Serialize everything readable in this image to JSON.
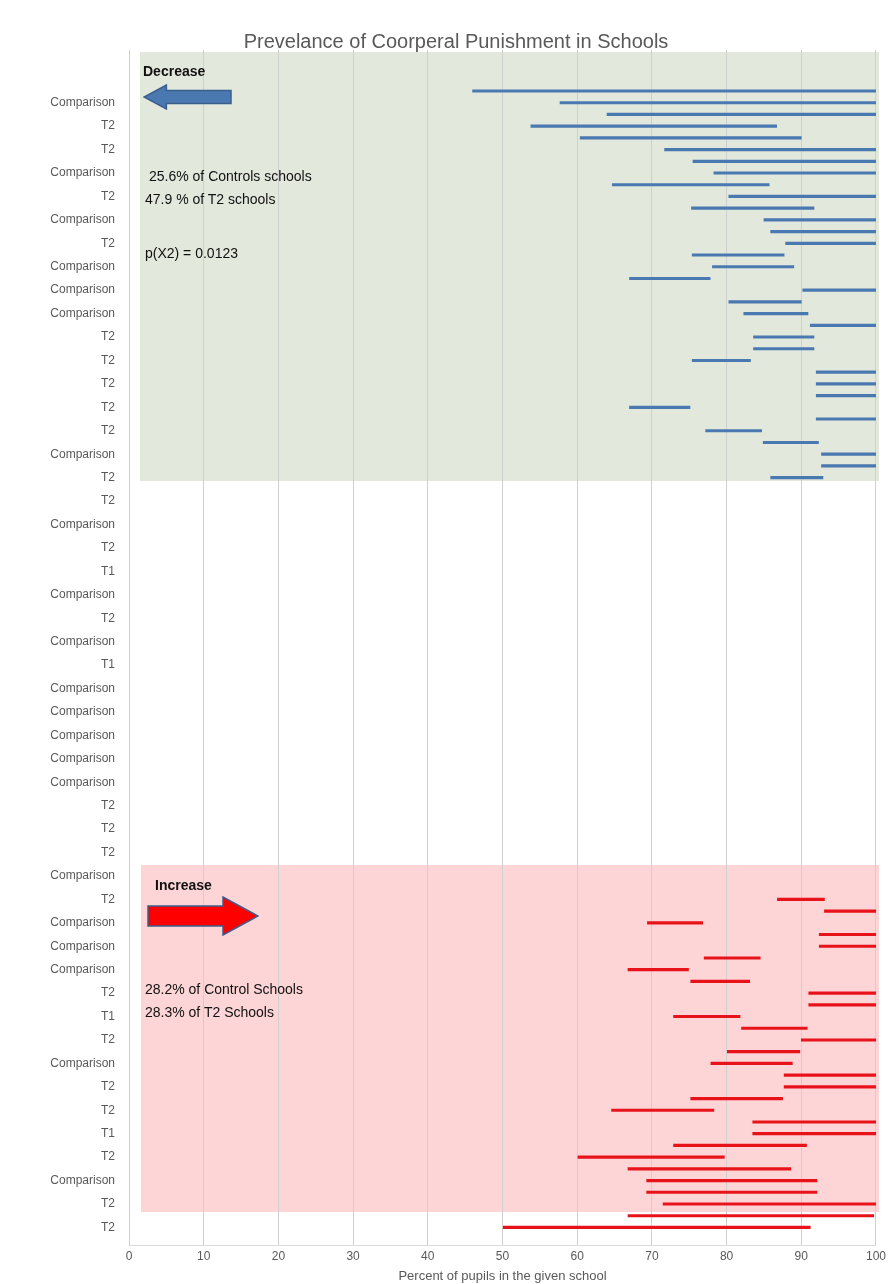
{
  "chart_data": {
    "type": "bar",
    "orientation": "horizontal",
    "title": "Prevelance of Coorperal Punishment in Schools",
    "xlabel": "Percent of pupils in the given school",
    "categories": [
      null,
      null,
      null,
      null,
      "Comparison",
      null,
      "T2",
      null,
      "T2",
      null,
      "Comparison",
      null,
      "T2",
      null,
      "Comparison",
      null,
      "T2",
      null,
      "Comparison",
      null,
      "Comparison",
      null,
      "Comparison",
      null,
      "T2",
      null,
      "T2",
      null,
      "T2",
      null,
      "T2",
      null,
      "T2",
      null,
      "Comparison",
      null,
      "T2",
      null,
      "T2",
      null,
      "Comparison",
      null,
      "T2",
      null,
      "T1",
      null,
      "Comparison",
      null,
      "T2",
      null,
      "Comparison",
      null,
      "T1",
      null,
      "Comparison",
      null,
      "Comparison",
      null,
      "Comparison",
      null,
      "Comparison",
      null,
      "Comparison",
      null,
      "T2",
      null,
      "T2",
      null,
      "T2",
      null,
      "Comparison",
      null,
      "T2",
      null,
      "Comparison",
      null,
      "Comparison",
      null,
      "Comparison",
      null,
      "T2",
      null,
      "T1",
      null,
      "T2",
      null,
      "Comparison",
      null,
      "T2",
      null,
      "T2",
      null,
      "T1",
      null,
      "T2",
      null,
      "Comparison",
      null,
      "T2",
      null,
      "T2",
      null
    ],
    "series": [
      {
        "color": "#4a78b0",
        "base": [
          null,
          null,
          null,
          100,
          100,
          100,
          86.7,
          90,
          100,
          100,
          100,
          85.7,
          100,
          91.7,
          100,
          100,
          100,
          87.7,
          89,
          77.8,
          100,
          90,
          90.9,
          100,
          91.7,
          91.7,
          83.2,
          100,
          100,
          100,
          75.1,
          100,
          84.7,
          92.3,
          100,
          100,
          92.9,
          null,
          null,
          null,
          null,
          null,
          null,
          null,
          null,
          null,
          null,
          null,
          null,
          null,
          null,
          null,
          null,
          null,
          null,
          null,
          null,
          null,
          null,
          null,
          null,
          null,
          null,
          null,
          null,
          null,
          null,
          null,
          null,
          null,
          null,
          null,
          null,
          null,
          null,
          null,
          null,
          null,
          null,
          null,
          null,
          null,
          null,
          null,
          null,
          null,
          null,
          null,
          null,
          null,
          null,
          null,
          null,
          null,
          null,
          null,
          null,
          null,
          null,
          null,
          null,
          null
        ],
        "values": [
          null,
          null,
          null,
          -54,
          -42.3,
          -36,
          -32.9,
          -29.6,
          -28.3,
          -24.5,
          -21.7,
          -21,
          -19.7,
          -16.4,
          -15,
          -14.1,
          -12.1,
          -12.3,
          -10.9,
          -10.8,
          -9.8,
          -9.7,
          -8.6,
          -8.8,
          -8.1,
          -8.1,
          -7.8,
          -8,
          -8,
          -8,
          -8.1,
          -8,
          -7.5,
          -7.4,
          -7.3,
          -7.3,
          -7,
          null,
          null,
          null,
          null,
          null,
          null,
          null,
          null,
          null,
          null,
          null,
          null,
          null,
          null,
          null,
          null,
          null,
          null,
          null,
          null,
          null,
          null,
          null,
          null,
          null,
          null,
          null,
          null,
          null,
          null,
          null,
          null,
          null,
          null,
          null,
          null,
          null,
          null,
          null,
          null,
          null,
          null,
          null,
          null,
          null,
          null,
          null,
          null,
          null,
          null,
          null,
          null,
          null,
          null,
          null,
          null,
          null,
          null,
          null,
          null,
          null,
          null,
          null,
          null,
          null
        ]
      },
      {
        "color": "#e8131a",
        "base": [
          null,
          null,
          null,
          null,
          null,
          null,
          null,
          null,
          null,
          null,
          null,
          null,
          null,
          null,
          null,
          null,
          null,
          null,
          null,
          null,
          null,
          null,
          null,
          null,
          null,
          null,
          null,
          null,
          null,
          null,
          null,
          null,
          null,
          null,
          null,
          null,
          null,
          null,
          null,
          null,
          null,
          null,
          null,
          null,
          null,
          null,
          null,
          null,
          null,
          null,
          null,
          null,
          null,
          null,
          null,
          null,
          null,
          null,
          null,
          null,
          null,
          null,
          null,
          null,
          null,
          null,
          null,
          null,
          null,
          null,
          null,
          null,
          86.8,
          93.1,
          69.4,
          92.4,
          92.4,
          77,
          66.8,
          75.2,
          91,
          91,
          72.9,
          82,
          90,
          80.1,
          77.9,
          87.7,
          87.7,
          75.2,
          64.6,
          83.5,
          83.5,
          72.9,
          60.1,
          66.8,
          69.3,
          69.3,
          71.5,
          66.8,
          50.1,
          null
        ],
        "values": [
          null,
          null,
          null,
          null,
          null,
          null,
          null,
          null,
          null,
          null,
          null,
          null,
          null,
          null,
          null,
          null,
          null,
          null,
          null,
          null,
          null,
          null,
          null,
          null,
          null,
          null,
          null,
          null,
          null,
          null,
          null,
          null,
          null,
          null,
          null,
          null,
          null,
          null,
          null,
          null,
          null,
          null,
          null,
          null,
          null,
          null,
          null,
          null,
          null,
          null,
          null,
          null,
          null,
          null,
          null,
          null,
          null,
          null,
          null,
          null,
          null,
          null,
          null,
          null,
          null,
          null,
          null,
          null,
          null,
          null,
          null,
          null,
          6.3,
          6.9,
          7.4,
          7.6,
          7.6,
          7.5,
          8.1,
          7.9,
          9,
          9,
          8.9,
          8.8,
          10,
          9.7,
          10.9,
          12.3,
          12.3,
          12.3,
          13.7,
          16.5,
          16.5,
          17.8,
          19.6,
          21.8,
          22.8,
          22.8,
          28.5,
          32.9,
          41.1,
          null
        ]
      }
    ],
    "xlim": [
      0,
      100
    ],
    "xticks": [
      0,
      10,
      20,
      30,
      40,
      50,
      60,
      70,
      80,
      90,
      100
    ],
    "grid": "x",
    "annotations": [
      "Decrease",
      "25.6% of Controls schools",
      "47.9 % of T2 schools",
      "p(X2) = 0.0123",
      "Increase",
      "28.2% of Control Schools",
      "28.3% of T2 Schools"
    ]
  }
}
